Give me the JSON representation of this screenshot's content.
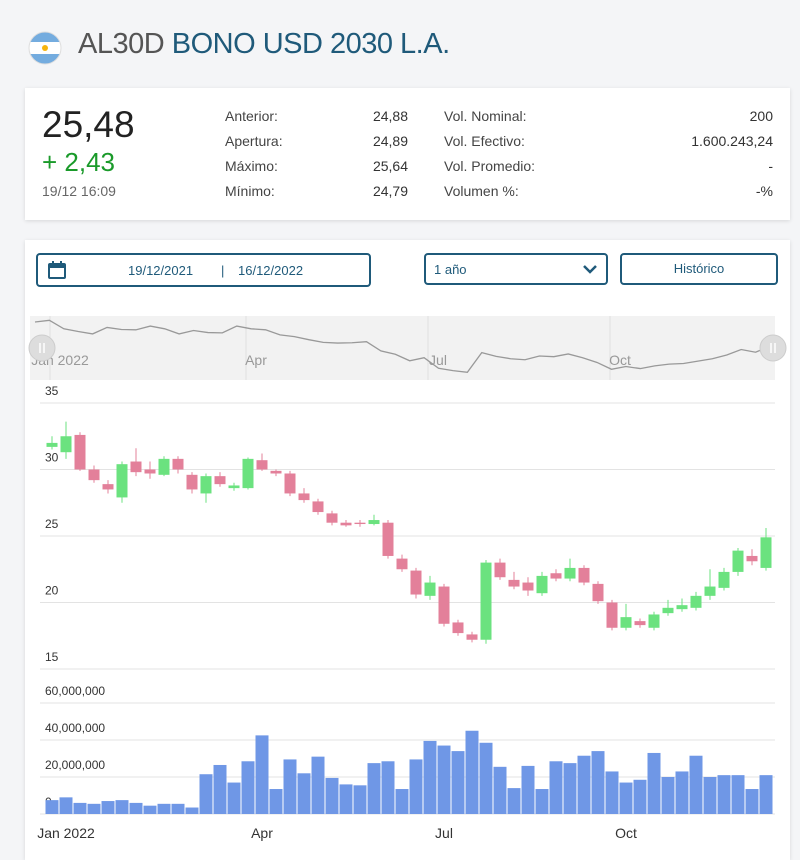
{
  "header": {
    "ticker": "AL30D",
    "name": "BONO USD 2030 L.A."
  },
  "quote": {
    "last": "25,48",
    "change": "+ 2,43",
    "time": "19/12 16:09",
    "fields": [
      {
        "label": "Anterior:",
        "value": "24,88"
      },
      {
        "label": "Apertura:",
        "value": "24,89"
      },
      {
        "label": "Máximo:",
        "value": "25,64"
      },
      {
        "label": "Mínimo:",
        "value": "24,79"
      },
      {
        "label": "Vol. Nominal:",
        "value": "200"
      },
      {
        "label": "Vol. Efectivo:",
        "value": "1.600.243,24"
      },
      {
        "label": "Vol. Promedio:",
        "value": "-"
      },
      {
        "label": "Volumen %:",
        "value": "-%"
      }
    ]
  },
  "controls": {
    "date_from": "19/12/2021",
    "separator": "|",
    "date_to": "16/12/2022",
    "period": "1 año",
    "button": "Histórico"
  },
  "chart_data": [
    {
      "type": "candlestick",
      "categories": [
        "Jan 2022",
        null,
        null,
        null,
        null,
        null,
        null,
        null,
        null,
        null,
        null,
        null,
        null,
        null,
        "Apr",
        null,
        null,
        null,
        null,
        null,
        null,
        null,
        null,
        null,
        null,
        null,
        null,
        "Jul",
        null,
        null,
        null,
        null,
        null,
        null,
        null,
        null,
        null,
        null,
        null,
        null,
        "Oct",
        null,
        null,
        null,
        null,
        null,
        null,
        null,
        null,
        null,
        null,
        null
      ],
      "open": [
        31.7,
        31.3,
        32.6,
        30.0,
        28.9,
        27.9,
        30.6,
        30.0,
        29.6,
        30.8,
        29.6,
        28.2,
        29.5,
        28.6,
        28.6,
        30.7,
        29.9,
        29.7,
        28.2,
        27.6,
        26.7,
        26.0,
        26.0,
        25.9,
        26.0,
        23.3,
        22.4,
        20.5,
        21.2,
        18.5,
        17.6,
        17.2,
        23.0,
        21.7,
        21.5,
        20.7,
        22.2,
        21.8,
        22.6,
        21.4,
        20.0,
        18.1,
        18.6,
        18.1,
        19.2,
        19.5,
        19.6,
        20.5,
        21.1,
        22.3,
        23.5,
        22.6
      ],
      "high": [
        32.5,
        33.6,
        32.8,
        30.3,
        29.2,
        30.6,
        31.6,
        30.6,
        31.0,
        31.0,
        29.8,
        29.7,
        29.8,
        29.0,
        30.9,
        31.2,
        30.0,
        29.9,
        28.6,
        27.8,
        26.9,
        26.2,
        26.2,
        26.6,
        26.2,
        23.6,
        22.6,
        22.0,
        21.4,
        18.7,
        17.8,
        23.2,
        23.3,
        22.3,
        21.9,
        22.3,
        22.5,
        23.3,
        22.8,
        21.6,
        20.2,
        19.9,
        18.8,
        19.3,
        20.2,
        20.3,
        20.8,
        22.5,
        22.6,
        24.1,
        24.0,
        25.6
      ],
      "low": [
        31.5,
        30.8,
        29.9,
        29.0,
        28.2,
        27.5,
        29.5,
        29.3,
        29.5,
        29.7,
        28.2,
        27.5,
        28.7,
        28.4,
        28.5,
        29.9,
        29.5,
        28.0,
        27.5,
        26.6,
        25.8,
        25.7,
        25.7,
        25.8,
        23.3,
        22.3,
        20.3,
        20.2,
        18.2,
        17.5,
        17.0,
        16.9,
        21.7,
        21.0,
        20.5,
        20.5,
        21.6,
        21.6,
        21.3,
        19.9,
        17.9,
        17.9,
        18.1,
        17.9,
        19.0,
        19.3,
        19.4,
        20.2,
        20.9,
        22.0,
        22.8,
        22.4
      ],
      "close": [
        32.0,
        32.5,
        30.0,
        29.2,
        28.5,
        30.4,
        29.8,
        29.7,
        30.8,
        30.0,
        28.5,
        29.5,
        28.9,
        28.8,
        30.8,
        30.0,
        29.7,
        28.2,
        27.7,
        26.8,
        26.0,
        25.8,
        25.9,
        26.2,
        23.5,
        22.5,
        20.6,
        21.5,
        18.4,
        17.7,
        17.2,
        23.0,
        21.9,
        21.2,
        20.9,
        22.0,
        21.8,
        22.6,
        21.5,
        20.1,
        18.1,
        18.9,
        18.3,
        19.1,
        19.6,
        19.8,
        20.5,
        21.2,
        22.3,
        23.9,
        23.1,
        24.9
      ],
      "ylim": [
        15,
        35
      ],
      "yticks": [
        15,
        20,
        25,
        30,
        35
      ],
      "grid": true,
      "colors": {
        "up": "#6be27f",
        "down": "#e3809a"
      }
    },
    {
      "type": "bar",
      "values": [
        7500000,
        9000000,
        6000000,
        5500000,
        7000000,
        7500000,
        6000000,
        4500000,
        5500000,
        5500000,
        3500000,
        21500000,
        26500000,
        17000000,
        28500000,
        42500000,
        13500000,
        29500000,
        22000000,
        31000000,
        19500000,
        16000000,
        15500000,
        27500000,
        28500000,
        13500000,
        29500000,
        39500000,
        37000000,
        34000000,
        45000000,
        38500000,
        25500000,
        14000000,
        26000000,
        13500000,
        28500000,
        27500000,
        31500000,
        34000000,
        23000000,
        17000000,
        18500000,
        33000000,
        20000000,
        23000000,
        31500000,
        20000000,
        21000000,
        21000000,
        13500000,
        21000000
      ],
      "ylim": [
        0,
        60000000
      ],
      "yticks": [
        {
          "value": 0,
          "label": "0"
        },
        {
          "value": 20000000,
          "label": "20,000,000"
        },
        {
          "value": 40000000,
          "label": "40,000,000"
        },
        {
          "value": 60000000,
          "label": "60,000,000"
        }
      ],
      "grid": true,
      "color": "#6f97e6"
    }
  ]
}
